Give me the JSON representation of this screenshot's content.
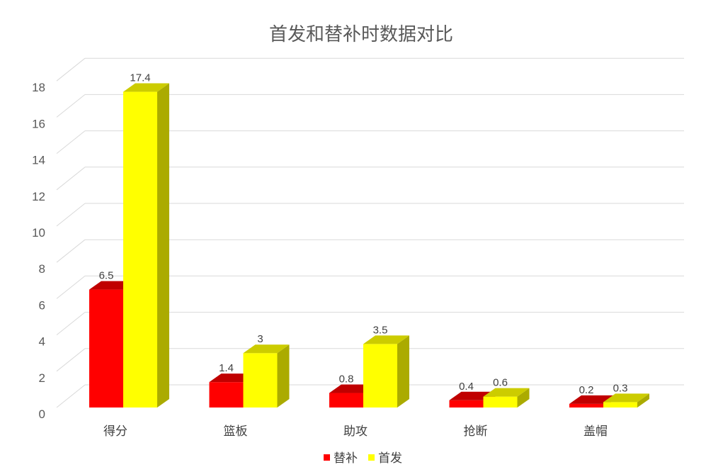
{
  "chart_data": {
    "type": "bar",
    "title": "首发和替补时数据对比",
    "categories": [
      "得分",
      "篮板",
      "助攻",
      "抢断",
      "盖帽"
    ],
    "series": [
      {
        "name": "替补",
        "values": [
          6.5,
          1.4,
          0.8,
          0.4,
          0.2
        ],
        "color": "#FF0000",
        "side_color": "#CC0000",
        "top_color": "#C00000"
      },
      {
        "name": "首发",
        "values": [
          17.4,
          3,
          3.5,
          0.6,
          0.3
        ],
        "color": "#FFFF00",
        "side_color": "#ABAB00",
        "top_color": "#CCCC00"
      }
    ],
    "ylim": [
      0,
      18
    ],
    "yticks": [
      0,
      2,
      4,
      6,
      8,
      10,
      12,
      14,
      16,
      18
    ],
    "grid": true,
    "legend": "bottom",
    "style": "3d-clustered-column"
  }
}
